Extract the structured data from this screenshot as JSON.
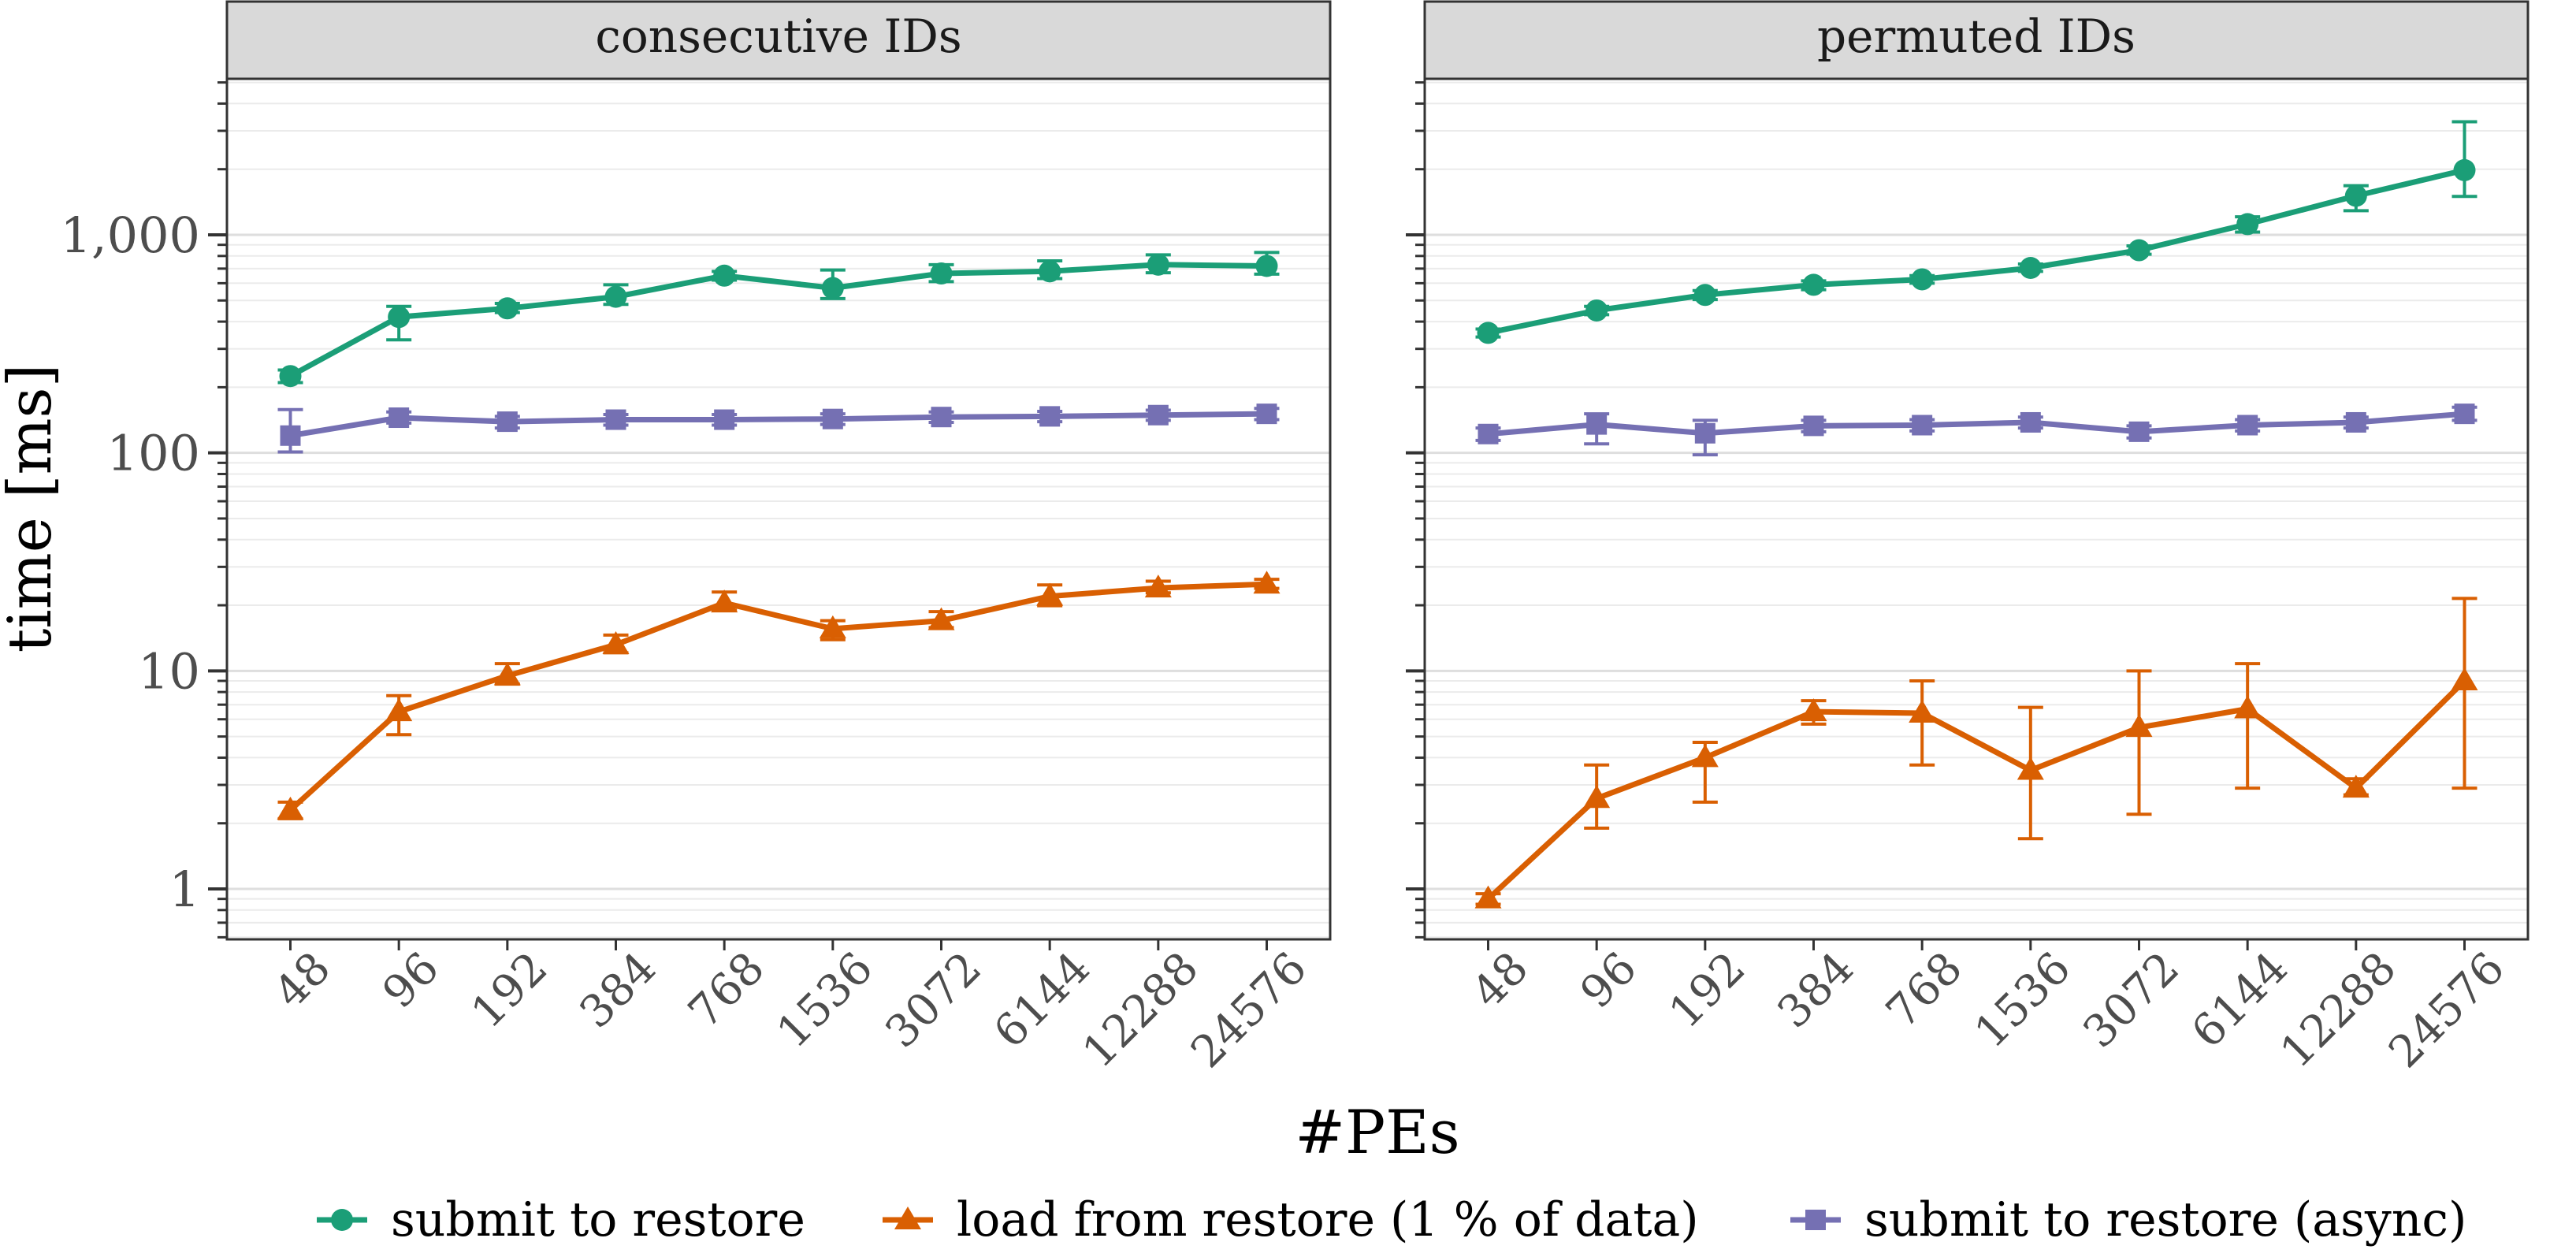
{
  "chart_data": {
    "type": "line",
    "xlabel": "#PEs",
    "ylabel": "time [ms]",
    "y_scale": "log10",
    "ylim": [
      0.6,
      5200
    ],
    "y_ticks": [
      1,
      10,
      100,
      1000
    ],
    "y_tick_labels": [
      "1",
      "10",
      "100",
      "1,000"
    ],
    "categories": [
      "48",
      "96",
      "192",
      "384",
      "768",
      "1536",
      "3072",
      "6144",
      "12288",
      "24576"
    ],
    "legend_position": "bottom",
    "grid": true,
    "legend": [
      {
        "name": "submit to restore",
        "color": "#1b9e77",
        "marker": "circle"
      },
      {
        "name": "load from restore (1 % of data)",
        "color": "#d95f02",
        "marker": "triangle"
      },
      {
        "name": "submit to restore (async)",
        "color": "#7570b3",
        "marker": "square"
      }
    ],
    "panels": [
      {
        "title": "consecutive IDs",
        "series": [
          {
            "name": "submit to restore",
            "color": "#1b9e77",
            "marker": "circle",
            "values": [
              225,
              420,
              460,
              520,
              650,
              570,
              665,
              680,
              730,
              720
            ],
            "lower": [
              210,
              330,
              440,
              480,
              620,
              510,
              610,
              630,
              670,
              660
            ],
            "upper": [
              240,
              470,
              485,
              590,
              680,
              690,
              730,
              760,
              810,
              830
            ]
          },
          {
            "name": "load from restore (1 % of data)",
            "color": "#d95f02",
            "marker": "triangle",
            "values": [
              2.3,
              6.5,
              9.5,
              13.2,
              20.5,
              15.6,
              17.0,
              22.0,
              24.0,
              25.0
            ],
            "lower": [
              2.1,
              5.1,
              8.7,
              12.1,
              19.0,
              13.9,
              15.8,
              19.9,
              22.8,
              23.9
            ],
            "upper": [
              2.5,
              7.7,
              10.8,
              14.6,
              23.0,
              17.0,
              18.7,
              24.8,
              25.8,
              26.3
            ]
          },
          {
            "name": "submit to restore (async)",
            "color": "#7570b3",
            "marker": "square",
            "values": [
              120,
              145,
              139,
              142,
              142,
              143,
              146,
              147,
              149,
              151
            ],
            "lower": [
              101,
              137,
              130,
              134,
              134,
              135,
              138,
              139,
              141,
              142
            ],
            "upper": [
              158,
              154,
              147,
              150,
              150,
              151,
              154,
              155,
              157,
              160
            ]
          }
        ]
      },
      {
        "title": "permuted IDs",
        "series": [
          {
            "name": "submit to restore",
            "color": "#1b9e77",
            "marker": "circle",
            "values": [
              355,
              450,
              530,
              590,
              625,
              705,
              850,
              1120,
              1510,
              1980
            ],
            "lower": [
              340,
              430,
              505,
              560,
              600,
              680,
              815,
              1030,
              1290,
              1500
            ],
            "upper": [
              370,
              470,
              555,
              615,
              650,
              735,
              890,
              1210,
              1680,
              3300
            ]
          },
          {
            "name": "load from restore (1 % of data)",
            "color": "#d95f02",
            "marker": "triangle",
            "values": [
              0.9,
              2.6,
              4.0,
              6.5,
              6.4,
              3.5,
              5.5,
              6.7,
              2.9,
              9.0
            ],
            "lower": [
              0.85,
              1.9,
              2.5,
              5.7,
              3.7,
              1.7,
              2.2,
              2.9,
              2.7,
              2.9
            ],
            "upper": [
              0.95,
              3.7,
              4.7,
              7.3,
              9.0,
              6.8,
              10.0,
              10.8,
              3.2,
              21.5
            ]
          },
          {
            "name": "submit to restore (async)",
            "color": "#7570b3",
            "marker": "square",
            "values": [
              122,
              135,
              123,
              133,
              134,
              138,
              125,
              134,
              138,
              151
            ],
            "lower": [
              114,
              110,
              98,
              125,
              126,
              130,
              117,
              126,
              130,
              141
            ],
            "upper": [
              130,
              151,
              141,
              141,
              142,
              146,
              133,
              142,
              146,
              162
            ]
          }
        ]
      }
    ]
  }
}
